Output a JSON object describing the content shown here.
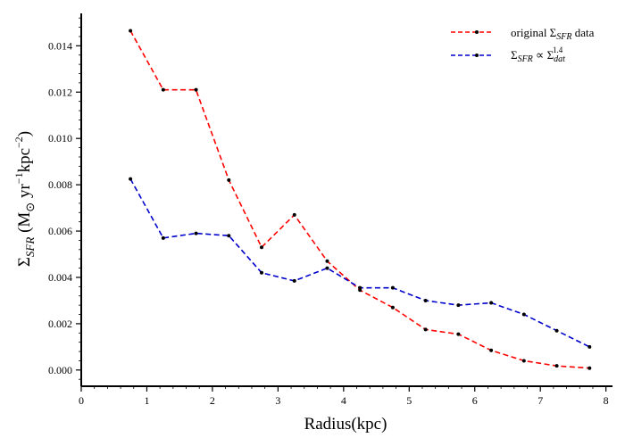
{
  "chart_data": {
    "type": "line",
    "title": "",
    "xlabel": "Radius(kpc)",
    "ylabel": "ΣSFR (M⊙ yr⁻¹kpc⁻²)",
    "ylabel_parts": {
      "sigma": "Σ",
      "sub": "SFR",
      "rest": " (M",
      "odot": "⊙",
      "yr": " yr",
      "exp1": "−1",
      "kpc": "kpc",
      "exp2": "−2",
      "close": ")"
    },
    "xlim": [
      0,
      8.1
    ],
    "ylim": [
      -0.0007,
      0.0154
    ],
    "xticks": [
      0,
      1,
      2,
      3,
      4,
      5,
      6,
      7,
      8
    ],
    "xtick_labels": [
      "0",
      "1",
      "2",
      "3",
      "4",
      "5",
      "6",
      "7",
      "8"
    ],
    "yticks": [
      0.0,
      0.002,
      0.004,
      0.006,
      0.008,
      0.01,
      0.012,
      0.014
    ],
    "ytick_labels": [
      "0.000",
      "0.002",
      "0.004",
      "0.006",
      "0.008",
      "0.010",
      "0.012",
      "0.014"
    ],
    "grid": false,
    "legend_position": "top-right",
    "x": [
      0.75,
      1.25,
      1.75,
      2.25,
      2.75,
      3.25,
      3.75,
      4.25,
      4.75,
      5.25,
      5.75,
      6.25,
      6.75,
      7.25,
      7.75
    ],
    "series": [
      {
        "legend_parts": {
          "pre": "original Σ",
          "sub": "SFR",
          "post": " data"
        },
        "color": "#ff0000",
        "marker_color": "#000000",
        "line_style": "dashed",
        "values": [
          0.01465,
          0.0121,
          0.0121,
          0.0082,
          0.0053,
          0.0067,
          0.0047,
          0.00345,
          0.0027,
          0.00175,
          0.00155,
          0.00085,
          0.0004,
          0.00018,
          8e-05
        ]
      },
      {
        "legend_parts": {
          "pre": "Σ",
          "sub": "SFR",
          "mid": " ∝ Σ",
          "sub2": "dat",
          "sup": "1.4"
        },
        "color": "#0000cc",
        "marker_color": "#000000",
        "line_style": "dashed",
        "values": [
          0.00825,
          0.0057,
          0.0059,
          0.0058,
          0.0042,
          0.00385,
          0.0044,
          0.00355,
          0.00355,
          0.003,
          0.0028,
          0.0029,
          0.0024,
          0.0017,
          0.001
        ]
      }
    ]
  }
}
